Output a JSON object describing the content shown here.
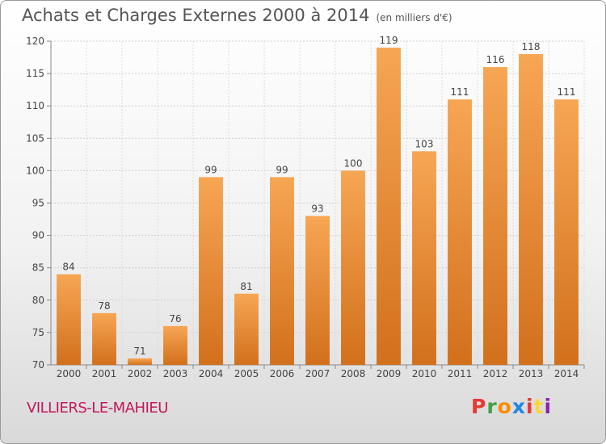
{
  "header": {
    "title": "Achats et Charges Externes 2000 à 2014",
    "subtitle": "(en milliers d'€)"
  },
  "footer": {
    "commune": "VILLIERS-LE-MAHIEU",
    "brand": "Proxiti"
  },
  "colors": {
    "bar_top": "#f7a654",
    "bar_bottom": "#d2701c",
    "commune_text": "#c2185b",
    "text": "#555555"
  },
  "chart_data": {
    "type": "bar",
    "categories": [
      "2000",
      "2001",
      "2002",
      "2003",
      "2004",
      "2005",
      "2006",
      "2007",
      "2008",
      "2009",
      "2010",
      "2011",
      "2012",
      "2013",
      "2014"
    ],
    "values": [
      84,
      78,
      71,
      76,
      99,
      81,
      99,
      93,
      100,
      119,
      103,
      111,
      116,
      118,
      111
    ],
    "ylim": [
      70,
      120
    ],
    "yticks": [
      70,
      75,
      80,
      85,
      90,
      95,
      100,
      105,
      110,
      115,
      120
    ],
    "grid": true,
    "data_labels": true
  }
}
